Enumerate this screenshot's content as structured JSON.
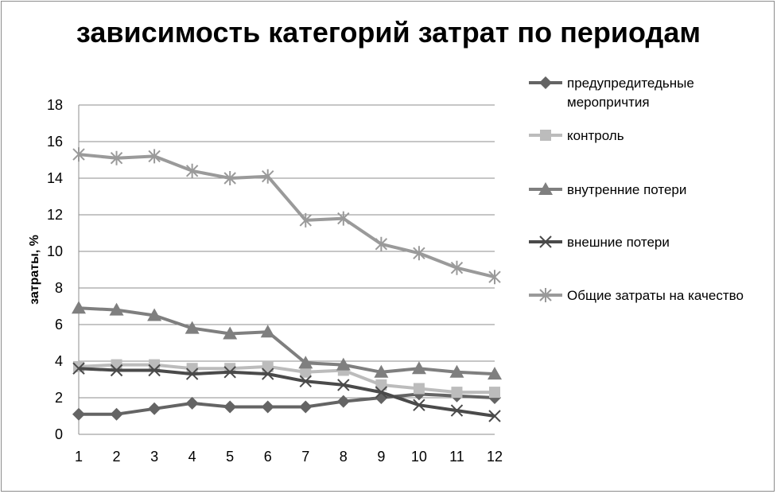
{
  "chart_data": {
    "type": "line",
    "title": "зависимость категорий затрат по периодам",
    "xlabel": "",
    "ylabel": "затраты, %",
    "x": [
      1,
      2,
      3,
      4,
      5,
      6,
      7,
      8,
      9,
      10,
      11,
      12
    ],
    "x_tick_labels": [
      "1",
      "2",
      "3",
      "4",
      "5",
      "6",
      "7",
      "8",
      "9",
      "10",
      "11",
      "12"
    ],
    "ylim": [
      0,
      18
    ],
    "y_ticks": [
      0,
      2,
      4,
      6,
      8,
      10,
      12,
      14,
      16,
      18
    ],
    "y_tick_labels": [
      "0",
      "2",
      "4",
      "6",
      "8",
      "10",
      "12",
      "14",
      "16",
      "18"
    ],
    "grid": "horizontal",
    "legend_position": "right",
    "series": [
      {
        "name": "предупредитедьные меропричтия",
        "legend_lines": [
          "предупредитедьные",
          "меропричтия"
        ],
        "marker": "diamond",
        "color": "#646464",
        "values": [
          1.1,
          1.1,
          1.4,
          1.7,
          1.5,
          1.5,
          1.5,
          1.8,
          2.0,
          2.2,
          2.1,
          2.0
        ]
      },
      {
        "name": "контроль",
        "legend_lines": [
          "контроль"
        ],
        "marker": "square",
        "color": "#bcbcbc",
        "values": [
          3.7,
          3.8,
          3.8,
          3.6,
          3.6,
          3.7,
          3.4,
          3.5,
          2.7,
          2.5,
          2.3,
          2.3
        ]
      },
      {
        "name": "внутренние потери",
        "legend_lines": [
          "внутренние потери"
        ],
        "marker": "triangle",
        "color": "#7f7f7f",
        "values": [
          6.9,
          6.8,
          6.5,
          5.8,
          5.5,
          5.6,
          3.9,
          3.8,
          3.4,
          3.6,
          3.4,
          3.3
        ]
      },
      {
        "name": "внешние потери",
        "legend_lines": [
          "внешние потери"
        ],
        "marker": "x",
        "color": "#4a4a4a",
        "values": [
          3.6,
          3.5,
          3.5,
          3.3,
          3.4,
          3.3,
          2.9,
          2.7,
          2.3,
          1.6,
          1.3,
          1.0
        ]
      },
      {
        "name": "Общие затраты на качество",
        "legend_lines": [
          "Общие затраты на качество"
        ],
        "marker": "star",
        "color": "#9a9a9a",
        "values": [
          15.3,
          15.1,
          15.2,
          14.4,
          14.0,
          14.1,
          11.7,
          11.8,
          10.4,
          9.9,
          9.1,
          8.6
        ]
      }
    ]
  }
}
